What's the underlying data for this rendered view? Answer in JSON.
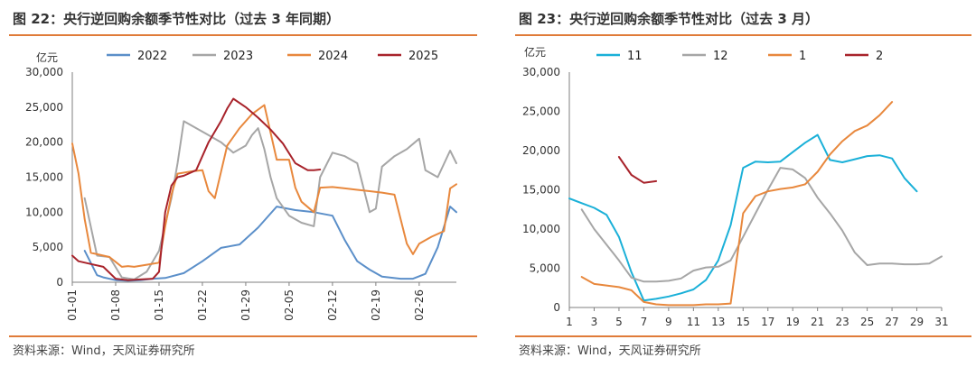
{
  "charts": [
    {
      "title": "图 22：央行逆回购余额季节性对比（过去 3 年同期）",
      "source": "资料来源：Wind，天风证券研究所",
      "chart_data": {
        "type": "line",
        "yunit": "亿元",
        "ylim": [
          0,
          30000
        ],
        "yticks": [
          0,
          5000,
          10000,
          15000,
          20000,
          25000,
          30000
        ],
        "ytick_labels": [
          "0",
          "5,000",
          "10,000",
          "15,000",
          "20,000",
          "25,000",
          "30,000"
        ],
        "xlim": [
          0,
          62
        ],
        "xticks": [
          0,
          7,
          14,
          21,
          28,
          35,
          42,
          49,
          56
        ],
        "xtick_labels": [
          "01-01",
          "01-08",
          "01-15",
          "01-22",
          "01-29",
          "02-05",
          "02-12",
          "02-19",
          "02-26"
        ],
        "grid": false,
        "legend_position": "top",
        "series": [
          {
            "name": "2022",
            "color": "#5b8fc9",
            "x": [
              2,
              4,
              5,
              7,
              9,
              11,
              13,
              15,
              18,
              21,
              24,
              27,
              30,
              33,
              36,
              39,
              42,
              44,
              46,
              48,
              50,
              53,
              55,
              57,
              59,
              61,
              62
            ],
            "y": [
              4500,
              1000,
              700,
              300,
              200,
              300,
              500,
              600,
              1300,
              3000,
              4900,
              5400,
              7800,
              10800,
              10300,
              10000,
              9500,
              6000,
              3000,
              1800,
              800,
              500,
              500,
              1200,
              5000,
              10800,
              10000
            ]
          },
          {
            "name": "2023",
            "color": "#a6a6a6",
            "x": [
              2,
              4,
              6,
              8,
              10,
              12,
              14,
              16,
              17,
              18,
              20,
              22,
              24,
              26,
              28,
              29,
              30,
              31,
              32,
              33,
              35,
              37,
              39,
              40,
              42,
              44,
              46,
              48,
              49,
              50,
              52,
              54,
              56,
              57,
              59,
              61,
              62
            ],
            "y": [
              12000,
              3800,
              3600,
              700,
              400,
              1500,
              4500,
              12000,
              17000,
              23000,
              22000,
              21000,
              20000,
              18500,
              19500,
              21000,
              22000,
              19000,
              15000,
              12000,
              9500,
              8500,
              8000,
              15000,
              18500,
              18000,
              17000,
              10000,
              10500,
              16500,
              18000,
              19000,
              20500,
              16000,
              15000,
              18800,
              17000
            ]
          },
          {
            "name": "2024",
            "color": "#e8883d",
            "x": [
              0,
              1,
              2,
              3,
              4,
              6,
              8,
              9,
              10,
              12,
              14,
              15,
              16,
              17,
              19,
              21,
              22,
              23,
              25,
              27,
              29,
              31,
              33,
              35,
              36,
              37,
              39,
              40,
              42,
              44,
              46,
              48,
              50,
              52,
              54,
              55,
              56,
              57,
              58,
              60,
              61,
              62
            ],
            "y": [
              19800,
              15500,
              9000,
              4200,
              4000,
              3600,
              2200,
              2300,
              2200,
              2500,
              2800,
              8000,
              12500,
              15500,
              15800,
              16000,
              13000,
              12000,
              19500,
              22000,
              24000,
              25300,
              17500,
              17500,
              13500,
              11500,
              10000,
              13500,
              13600,
              13400,
              13200,
              13000,
              12800,
              12500,
              5500,
              4000,
              5500,
              6000,
              6500,
              7300,
              13400,
              14000
            ]
          },
          {
            "name": "2025",
            "color": "#a8232b",
            "x": [
              0,
              1,
              3,
              5,
              7,
              9,
              11,
              13,
              14,
              15,
              16,
              17,
              18,
              20,
              22,
              24,
              25,
              26,
              28,
              30,
              32,
              34,
              36,
              38,
              39,
              40
            ],
            "y": [
              3800,
              3000,
              2600,
              2200,
              500,
              300,
              400,
              500,
              1500,
              10000,
              13800,
              15000,
              15200,
              16000,
              20000,
              23000,
              24800,
              26200,
              25000,
              23500,
              21800,
              19800,
              17000,
              16000,
              16000,
              16100
            ]
          }
        ]
      }
    },
    {
      "title": "图 23：央行逆回购余额季节性对比（过去 3 月）",
      "source": "资料来源：Wind，天风证券研究所",
      "chart_data": {
        "type": "line",
        "yunit": "亿元",
        "ylim": [
          0,
          30000
        ],
        "yticks": [
          0,
          5000,
          10000,
          15000,
          20000,
          25000,
          30000
        ],
        "ytick_labels": [
          "0",
          "5,000",
          "10,000",
          "15,000",
          "20,000",
          "25,000",
          "30,000"
        ],
        "xlim": [
          1,
          31
        ],
        "xticks": [
          1,
          3,
          5,
          7,
          9,
          11,
          13,
          15,
          17,
          19,
          21,
          23,
          25,
          27,
          29,
          31
        ],
        "xtick_labels": [
          "1",
          "3",
          "5",
          "7",
          "9",
          "11",
          "13",
          "15",
          "17",
          "19",
          "21",
          "23",
          "25",
          "27",
          "29",
          "31"
        ],
        "grid": false,
        "legend_position": "top",
        "series": [
          {
            "name": "11",
            "color": "#1ab0d8",
            "x": [
              1,
              2,
              3,
              4,
              5,
              6,
              7,
              8,
              9,
              10,
              11,
              12,
              13,
              14,
              15,
              16,
              17,
              18,
              19,
              20,
              21,
              22,
              23,
              24,
              25,
              26,
              27,
              28,
              29
            ],
            "y": [
              13900,
              13300,
              12700,
              11800,
              9000,
              4500,
              900,
              1100,
              1400,
              1800,
              2300,
              3500,
              6000,
              10500,
              17800,
              18600,
              18500,
              18600,
              19800,
              21000,
              22000,
              18800,
              18500,
              18900,
              19300,
              19400,
              19000,
              16500,
              14800
            ]
          },
          {
            "name": "12",
            "color": "#a6a6a6",
            "x": [
              2,
              3,
              4,
              5,
              6,
              7,
              8,
              9,
              10,
              11,
              12,
              13,
              14,
              15,
              16,
              17,
              18,
              19,
              20,
              21,
              22,
              23,
              24,
              25,
              26,
              27,
              28,
              29,
              30,
              31
            ],
            "y": [
              12500,
              10000,
              8000,
              6000,
              3800,
              3300,
              3300,
              3400,
              3700,
              4700,
              5100,
              5200,
              6000,
              9000,
              12000,
              15000,
              17800,
              17600,
              16500,
              14000,
              12000,
              9800,
              7000,
              5400,
              5600,
              5600,
              5500,
              5500,
              5600,
              6500
            ]
          },
          {
            "name": "1",
            "color": "#e8883d",
            "x": [
              2,
              3,
              4,
              5,
              6,
              7,
              8,
              9,
              10,
              11,
              12,
              13,
              14,
              15,
              16,
              17,
              18,
              19,
              20,
              21,
              22,
              23,
              24,
              25,
              26,
              27
            ],
            "y": [
              3900,
              3000,
              2800,
              2600,
              2200,
              700,
              400,
              300,
              300,
              300,
              400,
              400,
              500,
              12000,
              14200,
              14800,
              15100,
              15300,
              15700,
              17300,
              19500,
              21200,
              22500,
              23200,
              24500,
              26200
            ]
          },
          {
            "name": "2",
            "color": "#a8232b",
            "x": [
              5,
              6,
              7,
              8
            ],
            "y": [
              19200,
              16900,
              15900,
              16100
            ]
          }
        ]
      }
    }
  ]
}
